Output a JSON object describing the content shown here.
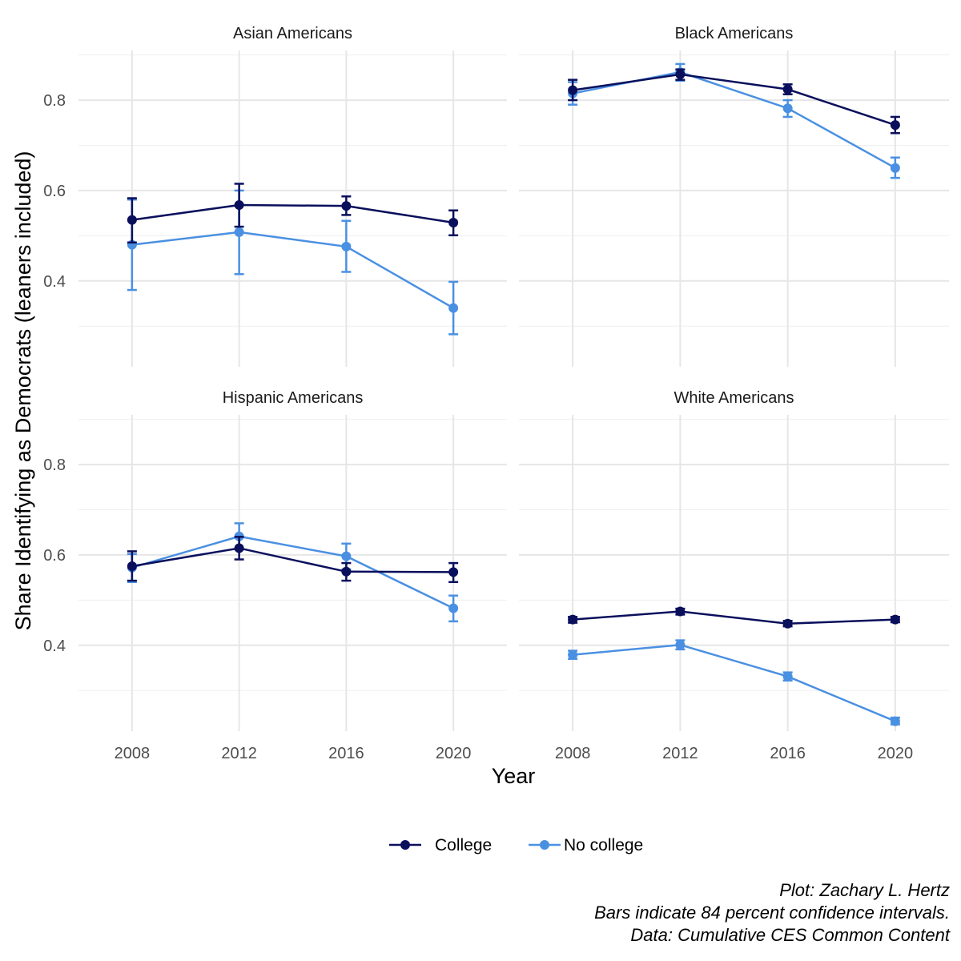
{
  "chart_data": {
    "type": "line",
    "ylabel": "Share Identifying as Democrats (leaners included)",
    "xlabel": "Year",
    "x": [
      2008,
      2012,
      2016,
      2020
    ],
    "x_ticks": [
      "2008",
      "2012",
      "2016",
      "2020"
    ],
    "y_ticks": [
      "0.4",
      "0.6",
      "0.8"
    ],
    "ylim": [
      0.21,
      0.91
    ],
    "xlim": [
      2006,
      2022
    ],
    "grid": true,
    "legend_position": "bottom",
    "series_styles": [
      {
        "name": "College",
        "color": "#0a0f5c"
      },
      {
        "name": "No college",
        "color": "#4a90e2"
      }
    ],
    "panels": [
      {
        "title": "Asian Americans",
        "series": [
          {
            "name": "College",
            "values": [
              0.535,
              0.568,
              0.566,
              0.529
            ],
            "lower": [
              0.485,
              0.52,
              0.546,
              0.501
            ],
            "upper": [
              0.583,
              0.615,
              0.587,
              0.556
            ]
          },
          {
            "name": "No college",
            "values": [
              0.48,
              0.508,
              0.476,
              0.34
            ],
            "lower": [
              0.38,
              0.415,
              0.42,
              0.282
            ],
            "upper": [
              0.58,
              0.6,
              0.533,
              0.398
            ]
          }
        ]
      },
      {
        "title": "Black Americans",
        "series": [
          {
            "name": "College",
            "values": [
              0.822,
              0.857,
              0.824,
              0.745
            ],
            "lower": [
              0.8,
              0.845,
              0.813,
              0.727
            ],
            "upper": [
              0.845,
              0.868,
              0.835,
              0.763
            ]
          },
          {
            "name": "No college",
            "values": [
              0.815,
              0.862,
              0.782,
              0.65
            ],
            "lower": [
              0.79,
              0.843,
              0.763,
              0.628
            ],
            "upper": [
              0.84,
              0.88,
              0.8,
              0.673
            ]
          }
        ]
      },
      {
        "title": "Hispanic Americans",
        "series": [
          {
            "name": "College",
            "values": [
              0.575,
              0.615,
              0.563,
              0.562
            ],
            "lower": [
              0.543,
              0.59,
              0.543,
              0.54
            ],
            "upper": [
              0.608,
              0.64,
              0.582,
              0.582
            ]
          },
          {
            "name": "No college",
            "values": [
              0.572,
              0.641,
              0.597,
              0.482
            ],
            "lower": [
              0.54,
              0.612,
              0.568,
              0.453
            ],
            "upper": [
              0.602,
              0.67,
              0.625,
              0.51
            ]
          }
        ]
      },
      {
        "title": "White Americans",
        "series": [
          {
            "name": "College",
            "values": [
              0.457,
              0.475,
              0.448,
              0.457
            ],
            "lower": [
              0.45,
              0.468,
              0.442,
              0.451
            ],
            "upper": [
              0.463,
              0.481,
              0.454,
              0.463
            ]
          },
          {
            "name": "No college",
            "values": [
              0.379,
              0.401,
              0.331,
              0.232
            ],
            "lower": [
              0.37,
              0.391,
              0.322,
              0.225
            ],
            "upper": [
              0.388,
              0.411,
              0.34,
              0.24
            ]
          }
        ]
      }
    ],
    "legend": [
      "College",
      "No college"
    ]
  },
  "caption": {
    "line1": "Plot: Zachary L. Hertz",
    "line2": "Bars indicate 84 percent confidence intervals.",
    "line3": "Data: Cumulative CES Common Content"
  }
}
